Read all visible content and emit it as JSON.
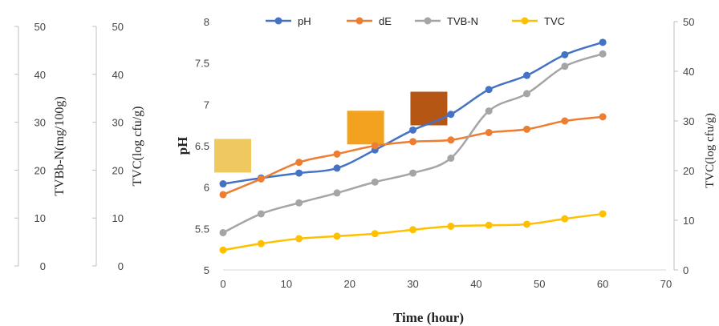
{
  "chart_data": {
    "type": "line",
    "xlabel": "Time (hour)",
    "xlim": [
      0,
      70
    ],
    "xticks": [
      0,
      10,
      20,
      30,
      40,
      50,
      60,
      70
    ],
    "x": [
      0,
      6,
      12,
      18,
      24,
      30,
      36,
      42,
      48,
      54,
      60
    ],
    "axes": {
      "ph": {
        "label": "pH",
        "range": [
          5,
          8
        ],
        "ticks": [
          "5",
          "5.5",
          "6",
          "6.5",
          "7",
          "7.5",
          "8"
        ]
      },
      "tvbn": {
        "label": "TVBb-N(mg/100g)",
        "range": [
          0,
          50
        ],
        "ticks": [
          "0",
          "10",
          "20",
          "30",
          "40",
          "50"
        ]
      },
      "tvc_left": {
        "label": "TVC(log cfu/g)",
        "range": [
          0,
          50
        ],
        "ticks": [
          "0",
          "10",
          "20",
          "30",
          "40",
          "50"
        ]
      },
      "tvc_right": {
        "label": "TVC(log cfu/g)",
        "range": [
          0,
          50
        ],
        "ticks": [
          "0",
          "10",
          "20",
          "30",
          "40",
          "50"
        ]
      }
    },
    "series": [
      {
        "name": "pH",
        "color": "#4472C4",
        "axis": "ph",
        "values": [
          6.04,
          6.11,
          6.17,
          6.23,
          6.45,
          6.69,
          6.88,
          7.18,
          7.35,
          7.6,
          7.75
        ]
      },
      {
        "name": "dE",
        "color": "#ED7D31",
        "axis": "ph",
        "values": [
          5.91,
          6.1,
          6.3,
          6.4,
          6.5,
          6.55,
          6.57,
          6.66,
          6.7,
          6.8,
          6.85
        ]
      },
      {
        "name": "TVB-N",
        "color": "#A5A5A5",
        "axis": "tvc_right",
        "values": [
          7.5,
          11.3,
          13.5,
          15.5,
          17.7,
          19.5,
          22.5,
          32.0,
          35.5,
          41.0,
          43.5
        ]
      },
      {
        "name": "TVC",
        "color": "#FFC000",
        "axis": "tvc_right",
        "values": [
          4.0,
          5.3,
          6.3,
          6.8,
          7.3,
          8.1,
          8.8,
          9.0,
          9.2,
          10.3,
          11.3
        ]
      }
    ],
    "legend": {
      "position": "top"
    },
    "swatches": [
      {
        "x": 0,
        "ph": 6.38,
        "color": "#F0C860",
        "name": "color-swatch-pale"
      },
      {
        "x": 21,
        "ph": 6.72,
        "color": "#F2A21E",
        "name": "color-swatch-orange"
      },
      {
        "x": 31,
        "ph": 6.95,
        "color": "#B65614",
        "name": "color-swatch-brown"
      }
    ]
  }
}
